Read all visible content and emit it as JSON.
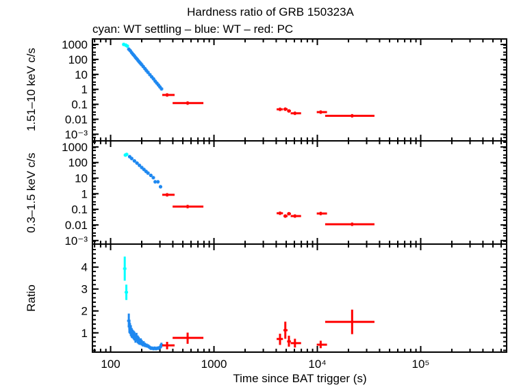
{
  "title": "Hardness ratio of GRB 150323A",
  "subtitle": "cyan: WT settling – blue: WT – red: PC",
  "colors": {
    "WT settling": "#00ffff",
    "WT": "#1e88f0",
    "PC": "#ff0000",
    "axis": "#000000"
  },
  "x_axis": {
    "label": "Time since BAT trigger (s)",
    "scale": "log",
    "xlim": [
      66.7,
      678000
    ],
    "ticks": [
      {
        "value": 100,
        "label": "100"
      },
      {
        "value": 1000,
        "label": "1000"
      },
      {
        "value": 10000,
        "label": "10⁴"
      },
      {
        "value": 100000,
        "label": "10⁵"
      }
    ]
  },
  "chart_data": [
    {
      "type": "scatter",
      "panel": "top",
      "ylabel": "1.51–10 keV c/s",
      "yscale": "log",
      "ylim": [
        0.00036,
        2320
      ],
      "yticks": [
        {
          "value": 1000,
          "label": "1000"
        },
        {
          "value": 100,
          "label": "100"
        },
        {
          "value": 10,
          "label": "10"
        },
        {
          "value": 1,
          "label": "1"
        },
        {
          "value": 0.1,
          "label": "0.1"
        },
        {
          "value": 0.01,
          "label": "0.01"
        },
        {
          "value": 0.001,
          "label": "10⁻³"
        }
      ],
      "series": [
        {
          "name": "WT settling",
          "points": [
            [
              134,
              134,
              134,
              1000,
              1000,
              1000
            ],
            [
              140,
              140,
              140,
              900,
              900,
              900
            ],
            [
              145,
              145,
              145,
              780,
              780,
              780
            ]
          ]
        },
        {
          "name": "WT",
          "points": [
            [
              150,
              150,
              150,
              480,
              400,
              560
            ],
            [
              155,
              155,
              155,
              380,
              320,
              440
            ],
            [
              160,
              160,
              160,
              280,
              240,
              330
            ],
            [
              165,
              165,
              165,
              215,
              185,
              250
            ],
            [
              170,
              170,
              170,
              170,
              145,
              200
            ],
            [
              175,
              175,
              175,
              130,
              110,
              150
            ],
            [
              180,
              180,
              180,
              105,
              90,
              120
            ],
            [
              185,
              185,
              185,
              82,
              70,
              95
            ],
            [
              190,
              190,
              190,
              66,
              56,
              76
            ],
            [
              195,
              195,
              195,
              54,
              46,
              62
            ],
            [
              200,
              200,
              200,
              44,
              38,
              50
            ],
            [
              207,
              207,
              207,
              33,
              28,
              38
            ],
            [
              215,
              215,
              215,
              24,
              20,
              28
            ],
            [
              222,
              222,
              222,
              18,
              15,
              21
            ],
            [
              230,
              230,
              230,
              13.5,
              11.5,
              15.5
            ],
            [
              240,
              240,
              240,
              9.5,
              8,
              11
            ],
            [
              250,
              250,
              250,
              6.8,
              5.8,
              7.8
            ],
            [
              260,
              260,
              260,
              5,
              4.2,
              5.8
            ],
            [
              270,
              270,
              270,
              3.5,
              3,
              4
            ],
            [
              280,
              280,
              280,
              2.6,
              2.2,
              3
            ],
            [
              290,
              290,
              290,
              1.95,
              1.65,
              2.25
            ],
            [
              300,
              300,
              300,
              1.45,
              1.2,
              1.7
            ],
            [
              311,
              311,
              311,
              1.07,
              0.9,
              1.25
            ]
          ]
        },
        {
          "name": "PC",
          "points": [
            [
              352,
              316,
              416,
              0.42,
              0.33,
              0.52
            ],
            [
              556,
              398,
              790,
              0.12,
              0.1,
              0.145
            ],
            [
              4355,
              4040,
              4650,
              0.046,
              0.04,
              0.053
            ],
            [
              4900,
              4700,
              5150,
              0.047,
              0.04,
              0.055
            ],
            [
              5310,
              5100,
              5550,
              0.036,
              0.03,
              0.043
            ],
            [
              6070,
              5520,
              6960,
              0.025,
              0.021,
              0.03
            ],
            [
              10770,
              9870,
              12400,
              0.03,
              0.025,
              0.036
            ],
            [
              21700,
              11900,
              35700,
              0.017,
              0.015,
              0.02
            ]
          ]
        }
      ]
    },
    {
      "type": "scatter",
      "panel": "middle",
      "ylabel": "0.3–1.5 keV c/s",
      "yscale": "log",
      "ylim": [
        0.00059,
        2450
      ],
      "yticks": [
        {
          "value": 1000,
          "label": "1000"
        },
        {
          "value": 100,
          "label": "100"
        },
        {
          "value": 10,
          "label": "10"
        },
        {
          "value": 1,
          "label": "1"
        },
        {
          "value": 0.1,
          "label": "0.1"
        },
        {
          "value": 0.01,
          "label": "0.01"
        },
        {
          "value": 0.001,
          "label": "10⁻³"
        }
      ],
      "series": [
        {
          "name": "WT settling",
          "points": [
            [
              139,
              139,
              139,
              300,
              300,
              300
            ],
            [
              143,
              143,
              143,
              330,
              330,
              330
            ]
          ]
        },
        {
          "name": "WT",
          "points": [
            [
              153,
              153,
              153,
              236,
              200,
              270
            ],
            [
              160,
              160,
              160,
              180,
              155,
              205
            ],
            [
              170,
              170,
              170,
              127,
              110,
              145
            ],
            [
              180,
              180,
              180,
              92,
              80,
              105
            ],
            [
              190,
              190,
              190,
              66,
              57,
              75
            ],
            [
              200,
              200,
              200,
              48,
              42,
              55
            ],
            [
              210,
              210,
              210,
              36,
              31,
              41
            ],
            [
              220,
              220,
              220,
              27,
              23,
              31
            ],
            [
              230,
              230,
              230,
              21,
              18,
              24
            ],
            [
              245,
              245,
              245,
              15,
              13,
              17
            ],
            [
              259,
              259,
              259,
              10.7,
              9,
              12.4
            ],
            [
              270,
              270,
              270,
              5.8,
              5,
              6.6
            ],
            [
              287,
              287,
              287,
              5.8,
              5,
              6.6
            ],
            [
              304,
              304,
              304,
              2.8,
              2.3,
              3.3
            ]
          ]
        },
        {
          "name": "PC",
          "points": [
            [
              352,
              316,
              416,
              0.85,
              0.7,
              1.0
            ],
            [
              556,
              398,
              790,
              0.15,
              0.125,
              0.18
            ],
            [
              4355,
              4040,
              4650,
              0.056,
              0.048,
              0.065
            ],
            [
              4900,
              4700,
              5150,
              0.037,
              0.031,
              0.044
            ],
            [
              5310,
              5100,
              5550,
              0.052,
              0.045,
              0.06
            ],
            [
              6070,
              5520,
              6960,
              0.037,
              0.032,
              0.043
            ],
            [
              10770,
              9870,
              12400,
              0.054,
              0.046,
              0.062
            ],
            [
              21700,
              11900,
              35700,
              0.011,
              0.0095,
              0.013
            ]
          ]
        }
      ]
    },
    {
      "type": "scatter",
      "panel": "bottom",
      "ylabel": "Ratio",
      "yscale": "linear",
      "ylim": [
        0.12,
        5.05
      ],
      "yticks": [
        {
          "value": 1,
          "label": "1"
        },
        {
          "value": 2,
          "label": "2"
        },
        {
          "value": 3,
          "label": "3"
        },
        {
          "value": 4,
          "label": "4"
        }
      ],
      "series": [
        {
          "name": "WT settling",
          "points": [
            [
              137,
              137,
              137,
              3.93,
              3.38,
              4.48
            ],
            [
              142,
              142,
              142,
              2.85,
              2.5,
              3.2
            ]
          ]
        },
        {
          "name": "WT",
          "points": [
            [
              150,
              150,
              150,
              1.55,
              1.25,
              1.88
            ],
            [
              152,
              152,
              152,
              1.3,
              1.0,
              1.6
            ],
            [
              154,
              154,
              154,
              1.2,
              0.95,
              1.45
            ],
            [
              157,
              157,
              157,
              1.1,
              0.85,
              1.35
            ],
            [
              160,
              160,
              160,
              1.0,
              0.78,
              1.22
            ],
            [
              163,
              163,
              163,
              0.95,
              0.75,
              1.15
            ],
            [
              167,
              167,
              167,
              0.9,
              0.7,
              1.1
            ],
            [
              170,
              170,
              170,
              0.85,
              0.65,
              1.05
            ],
            [
              174,
              174,
              174,
              0.75,
              0.55,
              0.95
            ],
            [
              178,
              178,
              178,
              0.8,
              0.6,
              1.0
            ],
            [
              183,
              183,
              183,
              0.7,
              0.52,
              0.88
            ],
            [
              187,
              187,
              187,
              0.65,
              0.48,
              0.82
            ],
            [
              191,
              191,
              191,
              0.6,
              0.45,
              0.75
            ],
            [
              196,
              196,
              196,
              0.6,
              0.45,
              0.75
            ],
            [
              200,
              200,
              200,
              0.55,
              0.42,
              0.68
            ],
            [
              205,
              205,
              205,
              0.5,
              0.38,
              0.62
            ],
            [
              209,
              209,
              209,
              0.5,
              0.38,
              0.62
            ],
            [
              215,
              215,
              215,
              0.45,
              0.35,
              0.55
            ],
            [
              223,
              223,
              223,
              0.42,
              0.33,
              0.51
            ],
            [
              230,
              230,
              230,
              0.4,
              0.32,
              0.48
            ],
            [
              237,
              237,
              237,
              0.35,
              0.28,
              0.42
            ],
            [
              245,
              245,
              245,
              0.3,
              0.24,
              0.36
            ],
            [
              252,
              252,
              252,
              0.3,
              0.24,
              0.36
            ],
            [
              260,
              260,
              260,
              0.28,
              0.22,
              0.34
            ],
            [
              267,
              267,
              267,
              0.3,
              0.24,
              0.36
            ],
            [
              275,
              275,
              275,
              0.28,
              0.22,
              0.34
            ],
            [
              284,
              284,
              284,
              0.3,
              0.24,
              0.36
            ],
            [
              292,
              292,
              292,
              0.3,
              0.24,
              0.36
            ],
            [
              302,
              302,
              302,
              0.35,
              0.28,
              0.42
            ],
            [
              310,
              310,
              310,
              0.45,
              0.35,
              0.55
            ]
          ]
        },
        {
          "name": "PC",
          "points": [
            [
              352,
              316,
              416,
              0.43,
              0.25,
              0.59
            ],
            [
              556,
              398,
              790,
              0.77,
              0.5,
              1.01
            ],
            [
              4355,
              4040,
              4650,
              0.72,
              0.45,
              0.96
            ],
            [
              4900,
              4700,
              5150,
              1.12,
              0.73,
              1.51
            ],
            [
              5310,
              5100,
              5550,
              0.61,
              0.37,
              0.87
            ],
            [
              6070,
              5520,
              6960,
              0.53,
              0.33,
              0.73
            ],
            [
              10770,
              9870,
              12400,
              0.46,
              0.3,
              0.64
            ],
            [
              21700,
              11900,
              35700,
              1.5,
              0.94,
              2.06
            ]
          ]
        }
      ]
    }
  ]
}
